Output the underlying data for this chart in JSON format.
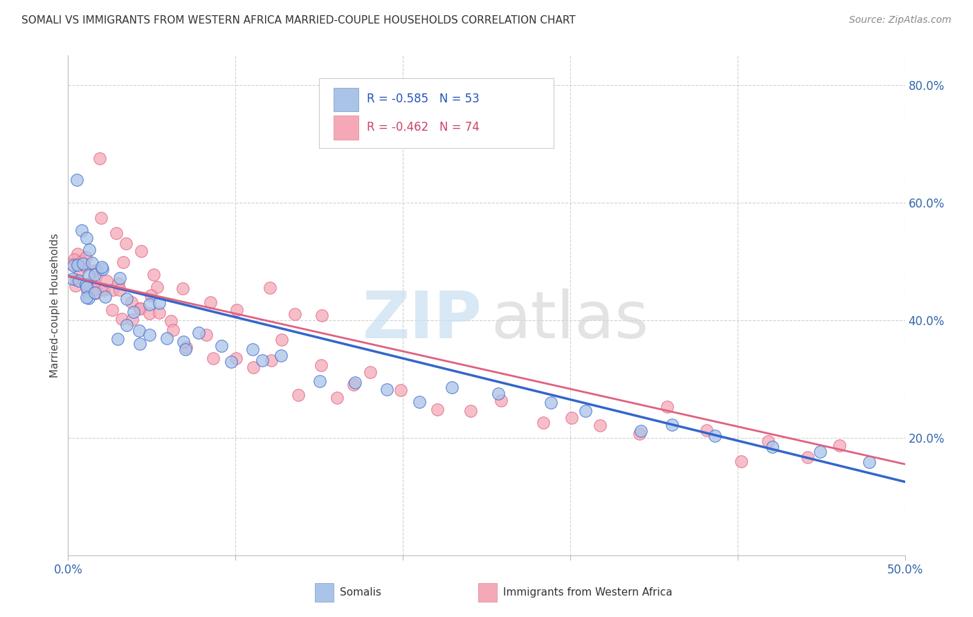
{
  "title": "SOMALI VS IMMIGRANTS FROM WESTERN AFRICA MARRIED-COUPLE HOUSEHOLDS CORRELATION CHART",
  "source": "Source: ZipAtlas.com",
  "ylabel": "Married-couple Households",
  "xlim": [
    0.0,
    0.5
  ],
  "ylim": [
    0.0,
    0.85
  ],
  "y_ticks_right": [
    0.2,
    0.4,
    0.6,
    0.8
  ],
  "y_tick_labels_right": [
    "20.0%",
    "40.0%",
    "60.0%",
    "80.0%"
  ],
  "grid_color": "#d0d0d0",
  "background_color": "#ffffff",
  "somali_color": "#aac4e8",
  "western_africa_color": "#f4a8b8",
  "somali_line_color": "#3366cc",
  "western_africa_line_color": "#e06080",
  "R_somali": -0.585,
  "N_somali": 53,
  "R_western": -0.462,
  "N_western": 74,
  "legend_label_somali": "Somalis",
  "legend_label_western": "Immigrants from Western Africa",
  "somali_scatter_x": [
    0.002,
    0.003,
    0.004,
    0.005,
    0.006,
    0.007,
    0.008,
    0.009,
    0.01,
    0.011,
    0.012,
    0.013,
    0.014,
    0.015,
    0.016,
    0.017,
    0.018,
    0.02,
    0.022,
    0.025,
    0.028,
    0.03,
    0.035,
    0.038,
    0.04,
    0.042,
    0.045,
    0.048,
    0.05,
    0.055,
    0.06,
    0.065,
    0.07,
    0.08,
    0.09,
    0.1,
    0.11,
    0.12,
    0.13,
    0.15,
    0.17,
    0.19,
    0.21,
    0.23,
    0.26,
    0.29,
    0.31,
    0.34,
    0.36,
    0.39,
    0.42,
    0.45,
    0.48
  ],
  "somali_scatter_y": [
    0.48,
    0.45,
    0.62,
    0.57,
    0.5,
    0.46,
    0.52,
    0.47,
    0.5,
    0.46,
    0.48,
    0.46,
    0.47,
    0.44,
    0.5,
    0.47,
    0.46,
    0.48,
    0.46,
    0.44,
    0.44,
    0.42,
    0.42,
    0.39,
    0.42,
    0.38,
    0.4,
    0.38,
    0.42,
    0.4,
    0.38,
    0.38,
    0.36,
    0.36,
    0.35,
    0.34,
    0.34,
    0.33,
    0.32,
    0.31,
    0.3,
    0.29,
    0.29,
    0.28,
    0.27,
    0.26,
    0.25,
    0.24,
    0.23,
    0.21,
    0.2,
    0.18,
    0.15
  ],
  "western_scatter_x": [
    0.002,
    0.003,
    0.004,
    0.005,
    0.006,
    0.007,
    0.008,
    0.009,
    0.01,
    0.011,
    0.012,
    0.013,
    0.014,
    0.015,
    0.016,
    0.017,
    0.018,
    0.019,
    0.02,
    0.022,
    0.025,
    0.028,
    0.03,
    0.032,
    0.035,
    0.038,
    0.04,
    0.042,
    0.045,
    0.048,
    0.05,
    0.055,
    0.06,
    0.065,
    0.07,
    0.08,
    0.09,
    0.1,
    0.11,
    0.12,
    0.13,
    0.14,
    0.15,
    0.16,
    0.17,
    0.18,
    0.2,
    0.22,
    0.24,
    0.26,
    0.28,
    0.3,
    0.32,
    0.34,
    0.36,
    0.38,
    0.4,
    0.42,
    0.44,
    0.46,
    0.018,
    0.025,
    0.035,
    0.045,
    0.055,
    0.07,
    0.085,
    0.1,
    0.12,
    0.15,
    0.019,
    0.03,
    0.05,
    0.13
  ],
  "western_scatter_y": [
    0.5,
    0.52,
    0.48,
    0.46,
    0.5,
    0.47,
    0.49,
    0.46,
    0.51,
    0.48,
    0.47,
    0.49,
    0.48,
    0.47,
    0.48,
    0.46,
    0.47,
    0.45,
    0.45,
    0.44,
    0.46,
    0.44,
    0.44,
    0.43,
    0.43,
    0.42,
    0.42,
    0.41,
    0.41,
    0.4,
    0.4,
    0.39,
    0.38,
    0.37,
    0.36,
    0.36,
    0.35,
    0.34,
    0.33,
    0.33,
    0.32,
    0.31,
    0.31,
    0.3,
    0.3,
    0.29,
    0.28,
    0.27,
    0.26,
    0.25,
    0.24,
    0.23,
    0.22,
    0.22,
    0.21,
    0.2,
    0.2,
    0.19,
    0.18,
    0.17,
    0.59,
    0.55,
    0.52,
    0.5,
    0.48,
    0.46,
    0.44,
    0.43,
    0.42,
    0.4,
    0.7,
    0.48,
    0.4,
    0.39
  ],
  "somali_line_x0": 0.0,
  "somali_line_y0": 0.475,
  "somali_line_x1": 0.5,
  "somali_line_y1": 0.125,
  "western_line_x0": 0.0,
  "western_line_y0": 0.475,
  "western_line_x1": 0.5,
  "western_line_y1": 0.155
}
